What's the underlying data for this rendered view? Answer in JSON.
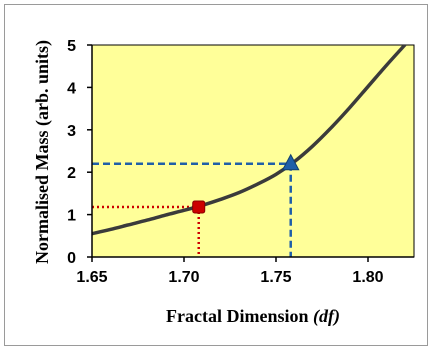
{
  "chart_data": {
    "type": "line",
    "xlabel": "Fractal Dimension",
    "xlabel_symbol": "(df)",
    "ylabel": "Normalised Mass (arb. units)",
    "xlim": [
      1.65,
      1.825
    ],
    "ylim": [
      0,
      5
    ],
    "x_ticks": [
      1.65,
      1.7,
      1.75,
      1.8
    ],
    "x_tick_labels": [
      "1.65",
      "1.70",
      "1.75",
      "1.80"
    ],
    "y_ticks": [
      0,
      1,
      2,
      3,
      4,
      5
    ],
    "y_tick_labels": [
      "0",
      "1",
      "2",
      "3",
      "4",
      "5"
    ],
    "grid": false,
    "background_color": "#ffff99",
    "series": [
      {
        "color": "#3b3b3b",
        "x": [
          1.65,
          1.66,
          1.67,
          1.68,
          1.69,
          1.7,
          1.71,
          1.72,
          1.73,
          1.74,
          1.75,
          1.76,
          1.77,
          1.78,
          1.79,
          1.8,
          1.81,
          1.82
        ],
        "y": [
          0.55,
          0.65,
          0.76,
          0.87,
          0.99,
          1.1,
          1.22,
          1.36,
          1.52,
          1.72,
          1.95,
          2.25,
          2.62,
          3.05,
          3.52,
          4.02,
          4.52,
          5.0
        ]
      }
    ],
    "markers": [
      {
        "shape": "square",
        "color": "#cc0000",
        "x": 1.708,
        "y": 1.18,
        "line_style": "dotted"
      },
      {
        "shape": "triangle",
        "color": "#1f5fa8",
        "x": 1.758,
        "y": 2.2,
        "line_style": "dashed"
      }
    ]
  }
}
